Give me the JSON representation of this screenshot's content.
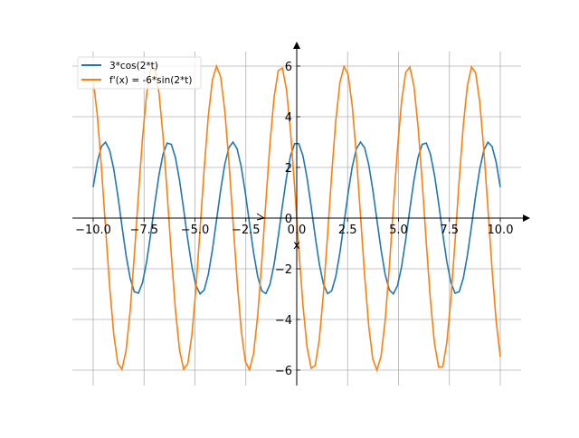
{
  "chart_data": {
    "type": "line",
    "title": "",
    "xlabel": "x",
    "ylabel": "",
    "xlim": [
      -10.5,
      10.5
    ],
    "ylim": [
      -6.6,
      6.6
    ],
    "grid": true,
    "legend_position": "top-left",
    "x_range": [
      -10,
      10
    ],
    "num_points": 100,
    "xticks": [
      -10,
      -7.5,
      -5,
      -2.5,
      0,
      2.5,
      5,
      7.5,
      10
    ],
    "xtick_labels": [
      "−10.0",
      "−7.5",
      "−5.0",
      "−2.5",
      "0.0",
      "2.5",
      "5.0",
      "7.5",
      "10.0"
    ],
    "yticks": [
      -6,
      -4,
      -2,
      0,
      2,
      4,
      6
    ],
    "ytick_labels": [
      "−6",
      "−4",
      "−2",
      "0",
      "2",
      "4",
      "6"
    ],
    "series": [
      {
        "name": "3*cos(2*t)",
        "amplitude": 3,
        "frequency": 2,
        "function": "cos",
        "color": "#1f77b4"
      },
      {
        "name": "f'(x) = -6*sin(2*t)",
        "amplitude": -6,
        "frequency": 2,
        "function": "sin",
        "color": "#ff7f0e"
      }
    ]
  }
}
